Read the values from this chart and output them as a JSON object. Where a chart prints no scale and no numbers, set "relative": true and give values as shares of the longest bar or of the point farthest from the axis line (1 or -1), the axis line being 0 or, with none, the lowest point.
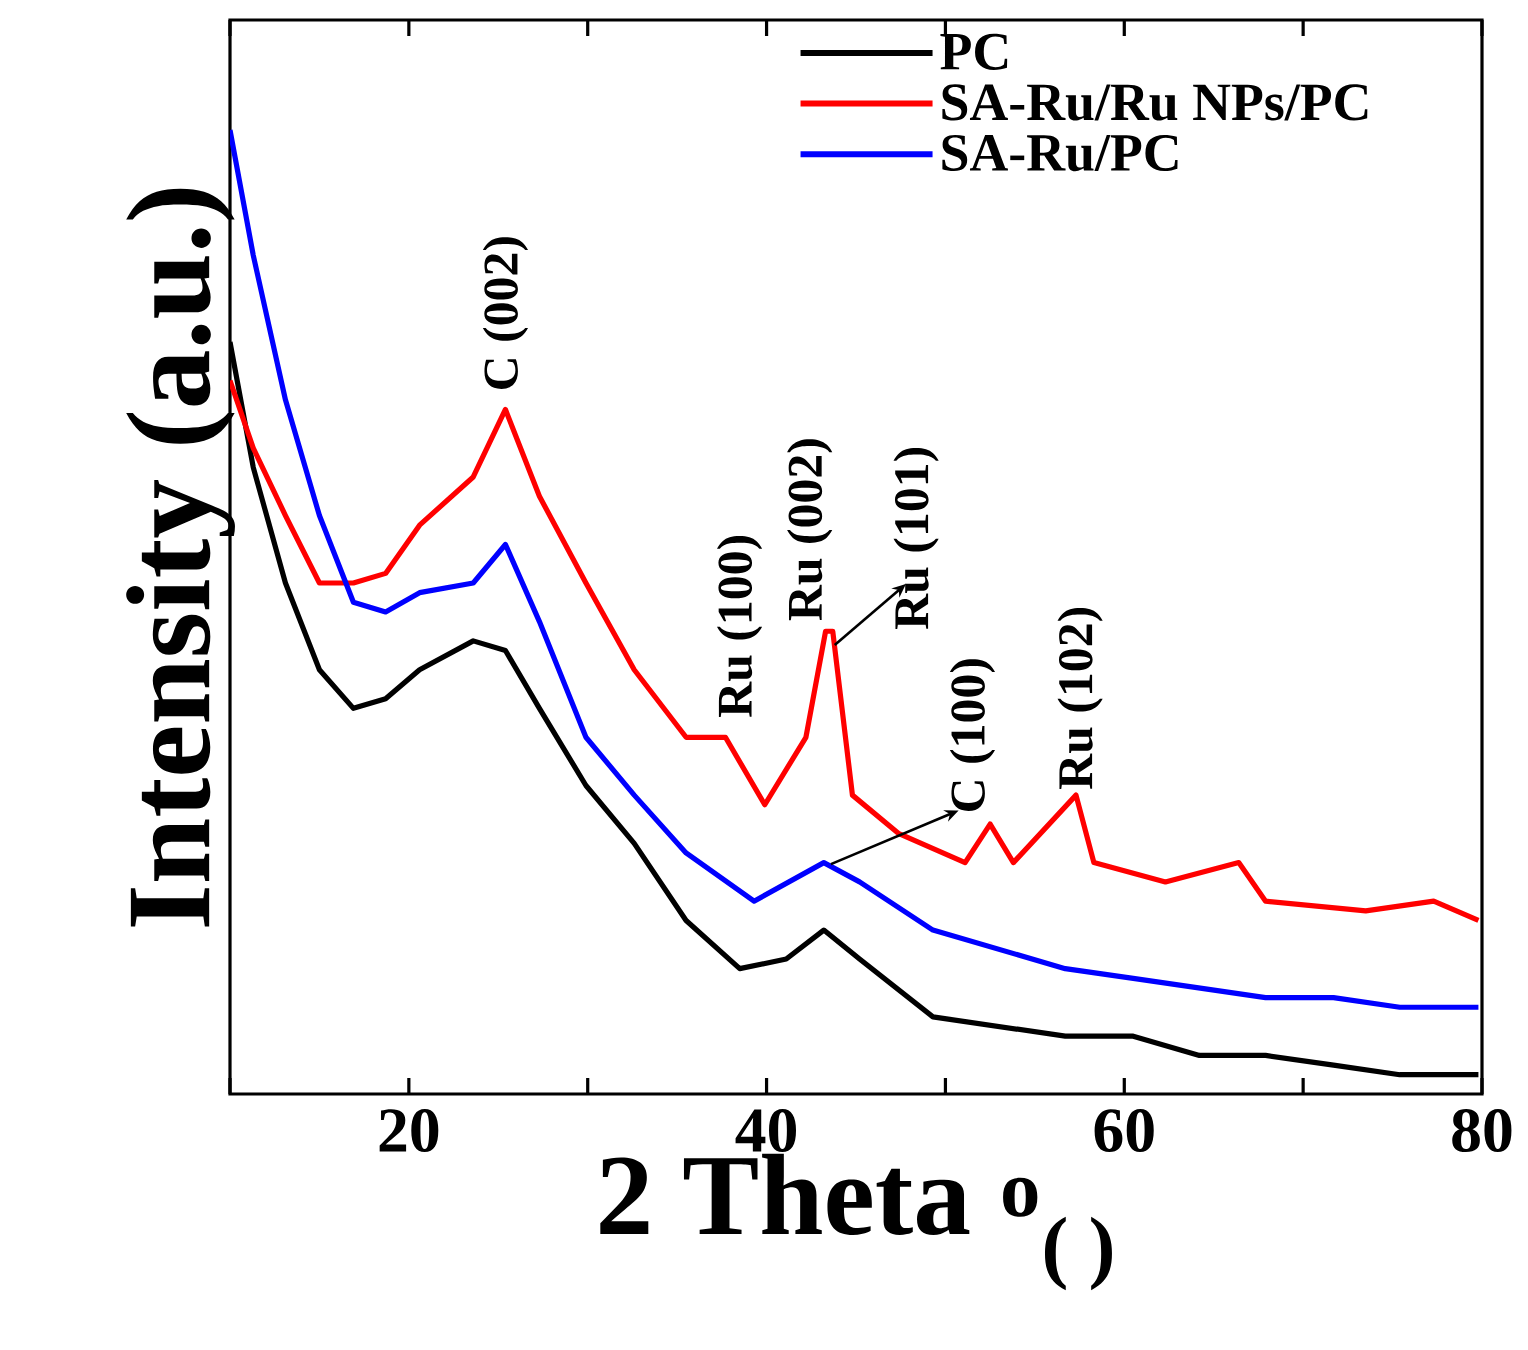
{
  "chart_data": {
    "type": "line",
    "relative": true,
    "xlabel": "2 Theta $^{o}$$_{( )}$",
    "ylabel": "Intensity (a.u.)",
    "xlim": [
      10,
      80
    ],
    "xticks": [
      {
        "value": 10,
        "label": null
      },
      20,
      {
        "value": 30,
        "label": null
      },
      40,
      {
        "value": 50,
        "label": null
      },
      60,
      {
        "value": 70,
        "label": null
      },
      80
    ],
    "legend": "top right",
    "tick_labels": "x",
    "series": [
      {
        "name": "PC",
        "color": "#000000",
        "x": [
          10.0,
          11.3,
          13.1,
          15.0,
          16.9,
          18.7,
          20.6,
          23.6,
          25.4,
          27.3,
          29.9,
          32.6,
          35.5,
          38.5,
          41.1,
          43.2,
          45.2,
          49.3,
          53.0,
          56.7,
          60.5,
          64.2,
          67.9,
          71.7,
          75.4,
          79.8
        ],
        "values": [
          0.78,
          0.65,
          0.53,
          0.44,
          0.4,
          0.41,
          0.44,
          0.47,
          0.46,
          0.4,
          0.32,
          0.26,
          0.18,
          0.13,
          0.14,
          0.17,
          0.14,
          0.08,
          0.07,
          0.06,
          0.06,
          0.04,
          0.04,
          0.03,
          0.02,
          0.02
        ]
      },
      {
        "name": "SA-Ru/Ru NPs/PC",
        "color": "#ff0000",
        "x": [
          10.0,
          11.3,
          13.1,
          15.0,
          16.9,
          18.7,
          20.6,
          23.6,
          25.4,
          27.3,
          29.9,
          32.6,
          35.5,
          37.7,
          39.9,
          42.2,
          43.3,
          43.7,
          44.8,
          47.4,
          51.1,
          52.5,
          53.8,
          57.3,
          58.3,
          62.3,
          66.4,
          67.9,
          73.5,
          77.3,
          79.8
        ],
        "values": [
          0.74,
          0.67,
          0.6,
          0.53,
          0.53,
          0.54,
          0.59,
          0.64,
          0.71,
          0.62,
          0.53,
          0.44,
          0.37,
          0.37,
          0.3,
          0.37,
          0.48,
          0.48,
          0.31,
          0.27,
          0.24,
          0.28,
          0.24,
          0.31,
          0.24,
          0.22,
          0.24,
          0.2,
          0.19,
          0.2,
          0.18
        ]
      },
      {
        "name": "SA-Ru/PC",
        "color": "#0000ff",
        "x": [
          10.0,
          11.3,
          13.1,
          15.0,
          16.9,
          18.7,
          20.6,
          23.6,
          25.4,
          27.3,
          29.9,
          32.6,
          35.5,
          39.3,
          43.2,
          45.2,
          49.3,
          53.0,
          56.7,
          60.5,
          64.2,
          67.9,
          71.7,
          75.4,
          79.8
        ],
        "values": [
          1.0,
          0.87,
          0.72,
          0.6,
          0.51,
          0.5,
          0.52,
          0.53,
          0.57,
          0.49,
          0.37,
          0.31,
          0.25,
          0.2,
          0.24,
          0.22,
          0.17,
          0.15,
          0.13,
          0.12,
          0.11,
          0.1,
          0.1,
          0.09,
          0.09
        ]
      }
    ],
    "annotations": [
      "C (002)",
      "Ru (100)",
      "Ru (002)",
      "Ru (101)",
      "C (100)",
      "Ru (102)"
    ]
  }
}
